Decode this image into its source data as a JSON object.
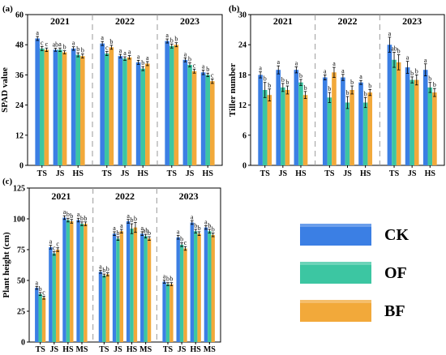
{
  "legend": {
    "items": [
      {
        "name": "CK",
        "color": "#3b7fe4"
      },
      {
        "name": "OF",
        "color": "#3cc6a2"
      },
      {
        "name": "BF",
        "color": "#f2a93a"
      }
    ]
  },
  "chart_data": [
    {
      "type": "bar",
      "panel_label": "(a)",
      "ylabel": "SPAD value",
      "ylim": [
        0,
        60
      ],
      "yticks": [
        0,
        12,
        24,
        36,
        48,
        60
      ],
      "groups": [
        {
          "title": "2021",
          "categories": [
            "TS",
            "JS",
            "HS"
          ]
        },
        {
          "title": "2022",
          "categories": [
            "TS",
            "JS",
            "HS"
          ]
        },
        {
          "title": "2023",
          "categories": [
            "TS",
            "JS",
            "HS"
          ]
        }
      ],
      "series": [
        {
          "name": "CK",
          "values": [
            50.5,
            46.0,
            46.5,
            48.5,
            43.5,
            41.0,
            49.5,
            42.0,
            37.0
          ],
          "errors": [
            0.8,
            0.6,
            0.7,
            0.8,
            0.7,
            0.8,
            0.8,
            0.8,
            0.9
          ],
          "letters": [
            "a",
            "ab",
            "a",
            "a",
            "a",
            "a",
            "a",
            "a",
            "a"
          ]
        },
        {
          "name": "OF",
          "values": [
            46.5,
            46.0,
            44.0,
            44.5,
            42.5,
            38.5,
            47.5,
            40.0,
            36.0
          ],
          "errors": [
            0.8,
            0.7,
            0.8,
            0.8,
            0.7,
            0.8,
            0.8,
            0.8,
            0.7
          ],
          "letters": [
            "c",
            "a",
            "b",
            "c",
            "a",
            "b",
            "b",
            "b",
            "b"
          ]
        },
        {
          "name": "BF",
          "values": [
            46.0,
            45.0,
            43.5,
            47.0,
            43.0,
            40.5,
            48.0,
            37.5,
            33.5
          ],
          "errors": [
            0.7,
            0.6,
            0.8,
            0.8,
            0.7,
            0.8,
            0.8,
            0.8,
            0.9
          ],
          "letters": [
            "c",
            "b",
            "b",
            "b",
            "a",
            "a",
            "b",
            "c",
            "c"
          ]
        }
      ]
    },
    {
      "type": "bar",
      "panel_label": "(b)",
      "ylabel": "Tiller number",
      "ylim": [
        0,
        30
      ],
      "yticks": [
        0,
        6,
        12,
        18,
        24,
        30
      ],
      "groups": [
        {
          "title": "2021",
          "categories": [
            "TS",
            "JS",
            "HS"
          ]
        },
        {
          "title": "2022",
          "categories": [
            "TS",
            "JS",
            "HS"
          ]
        },
        {
          "title": "2023",
          "categories": [
            "TS",
            "JS",
            "HS"
          ]
        }
      ],
      "series": [
        {
          "name": "CK",
          "values": [
            18.0,
            19.0,
            19.0,
            17.5,
            17.5,
            16.5,
            24.0,
            19.5,
            19.0
          ],
          "errors": [
            0.6,
            0.8,
            0.6,
            0.5,
            0.6,
            0.4,
            1.5,
            1.2,
            1.2
          ],
          "letters": [
            "a",
            "a",
            "a",
            "a",
            "a",
            "a",
            "a",
            "a",
            "a"
          ]
        },
        {
          "name": "OF",
          "values": [
            15.0,
            15.5,
            16.5,
            13.5,
            12.5,
            12.5,
            21.0,
            17.0,
            15.5
          ],
          "errors": [
            1.5,
            0.8,
            0.6,
            1.0,
            1.2,
            1.0,
            1.5,
            0.6,
            1.0
          ],
          "letters": [
            "b",
            "b",
            "b",
            "b",
            "b",
            "b",
            "ab",
            "b",
            "b"
          ]
        },
        {
          "name": "BF",
          "values": [
            14.0,
            15.0,
            14.0,
            18.5,
            15.0,
            14.5,
            20.5,
            17.0,
            14.5
          ],
          "errors": [
            1.2,
            0.8,
            0.7,
            1.0,
            0.8,
            0.6,
            1.5,
            1.0,
            0.8
          ],
          "letters": [
            "b",
            "b",
            "b",
            "a",
            "b",
            "b",
            "b",
            "b",
            "b"
          ]
        }
      ]
    },
    {
      "type": "bar",
      "panel_label": "(c)",
      "ylabel": "Plant height (cm)",
      "ylim": [
        0,
        125
      ],
      "yticks": [
        0,
        25,
        50,
        75,
        100,
        125
      ],
      "groups": [
        {
          "title": "2021",
          "categories": [
            "TS",
            "JS",
            "HS",
            "MS"
          ]
        },
        {
          "title": "2022",
          "categories": [
            "TS",
            "JS",
            "HS",
            "MS"
          ]
        },
        {
          "title": "2023",
          "categories": [
            "TS",
            "JS",
            "HS",
            "MS"
          ]
        }
      ],
      "series": [
        {
          "name": "CK",
          "values": [
            44,
            77,
            101,
            99,
            57,
            88,
            98,
            88,
            49,
            85,
            97,
            93
          ],
          "errors": [
            1.2,
            1.5,
            1.5,
            1.5,
            1.2,
            1.5,
            1.5,
            1.5,
            1.2,
            1.5,
            1.5,
            1.5
          ],
          "letters": [
            "a",
            "a",
            "a",
            "a",
            "a",
            "a",
            "a",
            "a",
            "a",
            "a",
            "a",
            "a"
          ]
        },
        {
          "name": "OF",
          "values": [
            39,
            72,
            99,
            96,
            54,
            84,
            92,
            86,
            47,
            79,
            90,
            90
          ],
          "errors": [
            1.2,
            1.5,
            1.5,
            1.5,
            1.2,
            1.5,
            4.0,
            1.5,
            1.2,
            1.5,
            1.5,
            1.5
          ],
          "letters": [
            "b",
            "c",
            "b",
            "b",
            "b",
            "b",
            "b",
            "ab",
            "b",
            "b",
            "b",
            "b"
          ]
        },
        {
          "name": "BF",
          "values": [
            36,
            75,
            98,
            96,
            55,
            90,
            93,
            84,
            47,
            76,
            88,
            87
          ],
          "errors": [
            1.2,
            1.5,
            1.5,
            1.5,
            1.2,
            1.5,
            4.0,
            1.5,
            1.2,
            1.5,
            1.5,
            1.5
          ],
          "letters": [
            "c",
            "c",
            "b",
            "b",
            "b",
            "a",
            "b",
            "b",
            "b",
            "c",
            "b",
            "b"
          ]
        }
      ]
    }
  ]
}
